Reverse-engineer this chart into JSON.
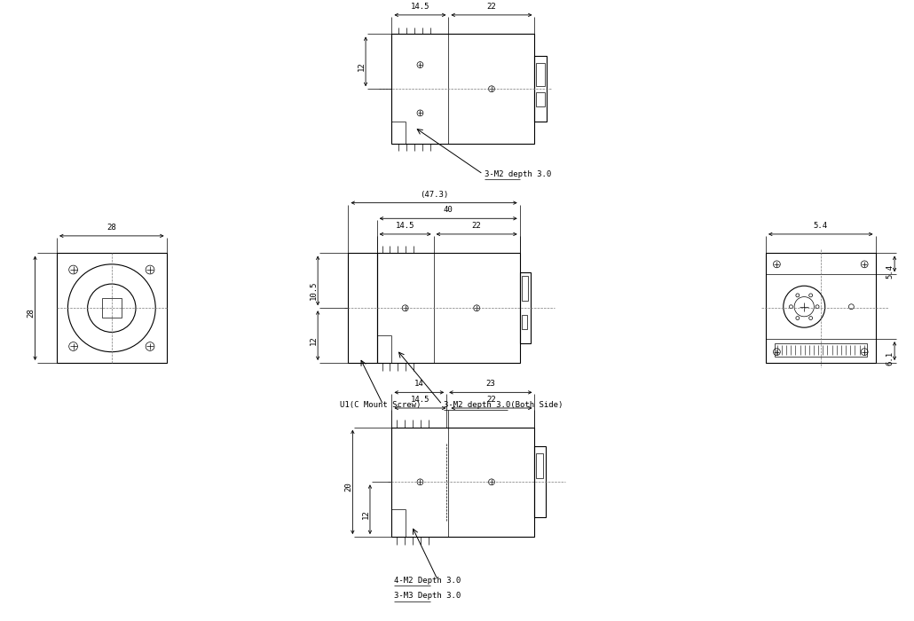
{
  "bg_color": "#ffffff",
  "line_color": "#000000",
  "fs": 6.5,
  "lw_thin": 0.5,
  "lw_med": 0.8,
  "lw_thick": 1.1,
  "notes": {
    "top_note": "3-M2 depth 3.0",
    "side_note1": "3-M2 depth 3.0(Both Side)",
    "side_note2": "U1(C Mount Screw)",
    "bot_note1": "4-M2 Depth 3.0",
    "bot_note2": "3-M3 Depth 3.0"
  },
  "dims": {
    "d145": "14.5",
    "d22": "22",
    "d12": "12",
    "d473": "(47.3)",
    "d40": "40",
    "d105": "10.5",
    "d28": "28",
    "d54": "5.4",
    "d61": "6.1",
    "d14": "14",
    "d23": "23",
    "d20": "20"
  }
}
